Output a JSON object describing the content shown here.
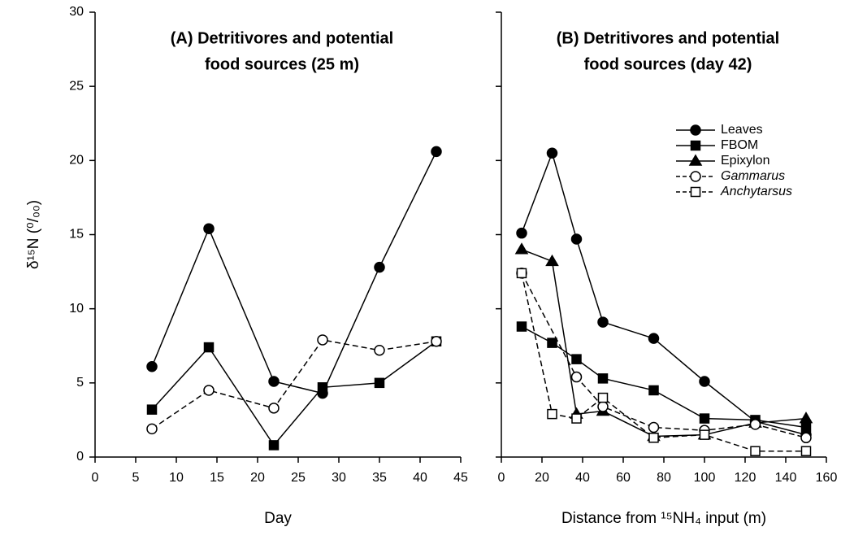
{
  "chart_data": [
    {
      "type": "line",
      "title": [
        "(A) Detritivores and potential",
        "food sources (25 m)"
      ],
      "x_label": "Day",
      "y_label": "δ¹⁵N (⁰/₀₀)",
      "xlim": [
        0,
        45
      ],
      "xticks": [
        0,
        5,
        10,
        15,
        20,
        25,
        30,
        35,
        40,
        45
      ],
      "ylim": [
        0,
        30
      ],
      "yticks": [
        0,
        5,
        10,
        15,
        20,
        25,
        30
      ],
      "ytick_labels": true,
      "series": [
        {
          "color": "#000000",
          "marker": "circle",
          "filled": true,
          "dashed": false,
          "x": [
            7,
            14,
            22,
            28,
            35,
            42
          ],
          "values": [
            6.1,
            15.4,
            5.1,
            4.3,
            12.8,
            20.6
          ]
        },
        {
          "color": "#000000",
          "marker": "square",
          "filled": true,
          "dashed": false,
          "x": [
            7,
            14,
            22,
            28,
            35,
            42
          ],
          "values": [
            3.2,
            7.4,
            0.8,
            4.7,
            5.0,
            7.8
          ]
        },
        {
          "color": "#000000",
          "marker": "circle",
          "filled": false,
          "dashed": true,
          "x": [
            7,
            14,
            22,
            28,
            35,
            42
          ],
          "values": [
            1.9,
            4.5,
            3.3,
            7.9,
            7.2,
            7.8
          ]
        }
      ]
    },
    {
      "type": "line",
      "title": [
        "(B)  Detritivores and potential",
        "food sources (day 42)"
      ],
      "x_label": "Distance from ¹⁵NH₄ input (m)",
      "xlim": [
        0,
        160
      ],
      "xticks": [
        0,
        20,
        40,
        60,
        80,
        100,
        120,
        140,
        160
      ],
      "ylim": [
        0,
        30
      ],
      "yticks": [
        0,
        5,
        10,
        15,
        20,
        25,
        30
      ],
      "ytick_labels": false,
      "legend": "upper right",
      "series": [
        {
          "name": "Leaves",
          "italic": false,
          "color": "#000000",
          "marker": "circle",
          "filled": true,
          "dashed": false,
          "x": [
            10,
            25,
            37,
            50,
            75,
            100,
            125,
            150
          ],
          "values": [
            15.1,
            20.5,
            14.7,
            9.1,
            8.0,
            5.1,
            2.4,
            1.5
          ]
        },
        {
          "name": "FBOM",
          "italic": false,
          "color": "#000000",
          "marker": "square",
          "filled": true,
          "dashed": false,
          "x": [
            10,
            25,
            37,
            50,
            75,
            100,
            125,
            150
          ],
          "values": [
            8.8,
            7.7,
            6.6,
            5.3,
            4.5,
            2.6,
            2.5,
            2.0
          ]
        },
        {
          "name": "Epixylon",
          "italic": false,
          "color": "#000000",
          "marker": "triangle",
          "filled": true,
          "dashed": false,
          "x": [
            10,
            25,
            37,
            50,
            75,
            100,
            125,
            150
          ],
          "values": [
            14.0,
            13.2,
            2.9,
            3.1,
            1.4,
            1.5,
            2.3,
            2.6
          ]
        },
        {
          "name": "Gammarus",
          "italic": true,
          "color": "#000000",
          "marker": "circle",
          "filled": false,
          "dashed": true,
          "x": [
            10,
            37,
            50,
            75,
            100,
            125,
            150
          ],
          "values": [
            12.4,
            5.4,
            3.4,
            2.0,
            1.8,
            2.2,
            1.3
          ]
        },
        {
          "name": "Anchytarsus",
          "italic": true,
          "color": "#000000",
          "marker": "square",
          "filled": false,
          "dashed": true,
          "x": [
            10,
            25,
            37,
            50,
            75,
            100,
            125,
            150
          ],
          "values": [
            12.4,
            2.9,
            2.6,
            4.0,
            1.3,
            1.5,
            0.4,
            0.4
          ]
        }
      ]
    }
  ]
}
